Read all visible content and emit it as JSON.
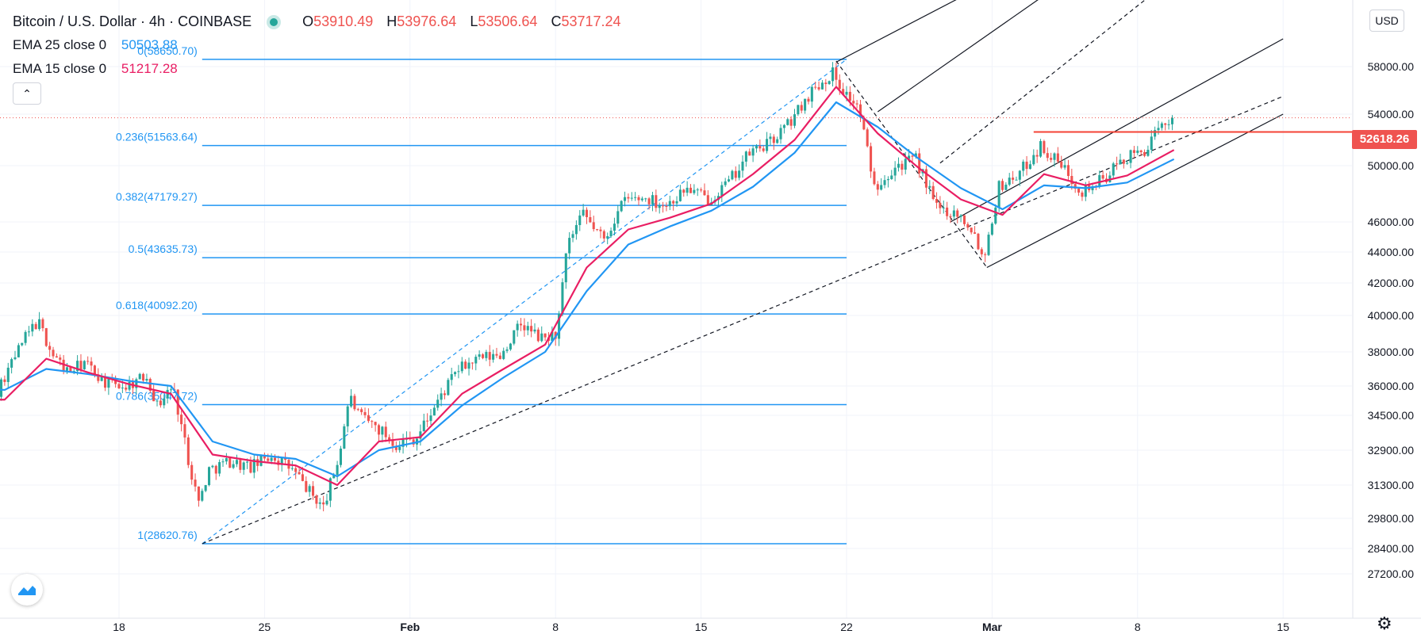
{
  "header": {
    "title": "Bitcoin / U.S. Dollar · 4h · COINBASE",
    "ohlc": [
      {
        "key": "O",
        "value": "53910.49"
      },
      {
        "key": "H",
        "value": "53976.64"
      },
      {
        "key": "L",
        "value": "53506.64"
      },
      {
        "key": "C",
        "value": "53717.24"
      }
    ]
  },
  "indicators": [
    {
      "label": "EMA 25 close 0",
      "value": "50503.88",
      "color": "#2196f3"
    },
    {
      "label": "EMA 15 close 0",
      "value": "51217.28",
      "color": "#e91e63"
    }
  ],
  "currency": "USD",
  "price_tag": {
    "value": "52618.26",
    "color": "#ef5350"
  },
  "colors": {
    "up": "#26a69a",
    "down": "#ef5350",
    "fib": "#2196f3",
    "ema25": "#2196f3",
    "ema15": "#e91e63",
    "resistance": "#f44336"
  },
  "icons": {
    "collapse": "chevron-up-icon",
    "logo": "tradingview-logo-icon",
    "settings": "gear-icon"
  },
  "chart_data": {
    "type": "candlestick",
    "symbol": "BTCUSD",
    "interval": "4h",
    "exchange": "COINBASE",
    "y_ticks": [
      "27200.00",
      "28400.00",
      "29800.00",
      "31300.00",
      "32900.00",
      "34500.00",
      "36000.00",
      "38000.00",
      "40000.00",
      "42000.00",
      "44000.00",
      "46000.00",
      "50000.00",
      "54000.00",
      "58000.00"
    ],
    "x_ticks": [
      {
        "label": "18",
        "date": "2021-01-18"
      },
      {
        "label": "25",
        "date": "2021-01-25"
      },
      {
        "label": "Feb",
        "date": "2021-02-01"
      },
      {
        "label": "8",
        "date": "2021-02-08"
      },
      {
        "label": "15",
        "date": "2021-02-15"
      },
      {
        "label": "22",
        "date": "2021-02-22"
      },
      {
        "label": "Mar",
        "date": "2021-03-01"
      },
      {
        "label": "8",
        "date": "2021-03-08"
      },
      {
        "label": "15",
        "date": "2021-03-15"
      }
    ],
    "x_range": [
      "2021-01-10T12:00",
      "2021-03-15T12:00"
    ],
    "fibonacci": {
      "from": "2021-01-22T00:00",
      "to": "2021-02-22T00:00",
      "levels": [
        {
          "label": "0(58650.70)",
          "price": 58650.7
        },
        {
          "label": "0.236(51563.64)",
          "price": 51563.64
        },
        {
          "label": "0.382(47179.27)",
          "price": 47179.27
        },
        {
          "label": "0.5(43635.73)",
          "price": 43635.73
        },
        {
          "label": "0.618(40092.20)",
          "price": 40092.2
        },
        {
          "label": "0.786(35047.72)",
          "price": 35047.72
        },
        {
          "label": "1(28620.76)",
          "price": 28620.76
        }
      ]
    },
    "resistance": {
      "price": 52618.26,
      "from": "2021-03-03T00:00"
    },
    "last_price": 53717.24,
    "ema25_last": 50503.88,
    "ema15_last": 51217.28,
    "price_path": [
      [
        "2021-01-10T12:00",
        35000
      ],
      [
        "2021-01-11T12:00",
        33500
      ],
      [
        "2021-01-12T12:00",
        36200
      ],
      [
        "2021-01-13T12:00",
        38500
      ],
      [
        "2021-01-14T06:00",
        39700
      ],
      [
        "2021-01-15T00:00",
        37800
      ],
      [
        "2021-01-15T18:00",
        36800
      ],
      [
        "2021-01-16T12:00",
        37400
      ],
      [
        "2021-01-17T12:00",
        36200
      ],
      [
        "2021-01-18T12:00",
        36000
      ],
      [
        "2021-01-19T12:00",
        36600
      ],
      [
        "2021-01-20T00:00",
        35000
      ],
      [
        "2021-01-20T18:00",
        36000
      ],
      [
        "2021-01-21T12:00",
        32500
      ],
      [
        "2021-01-22T00:00",
        30500
      ],
      [
        "2021-01-22T12:00",
        32000
      ],
      [
        "2021-01-23T12:00",
        32400
      ],
      [
        "2021-01-24T12:00",
        32100
      ],
      [
        "2021-01-25T12:00",
        32700
      ],
      [
        "2021-01-26T12:00",
        32000
      ],
      [
        "2021-01-27T12:00",
        30800
      ],
      [
        "2021-01-28T00:00",
        30300
      ],
      [
        "2021-01-28T18:00",
        32600
      ],
      [
        "2021-01-29T06:00",
        35500
      ],
      [
        "2021-01-29T18:00",
        34400
      ],
      [
        "2021-01-30T12:00",
        34000
      ],
      [
        "2021-01-31T12:00",
        33200
      ],
      [
        "2021-02-01T12:00",
        33500
      ],
      [
        "2021-02-02T12:00",
        35200
      ],
      [
        "2021-02-03T12:00",
        37000
      ],
      [
        "2021-02-04T12:00",
        37600
      ],
      [
        "2021-02-05T12:00",
        37800
      ],
      [
        "2021-02-06T12:00",
        39500
      ],
      [
        "2021-02-07T12:00",
        38700
      ],
      [
        "2021-02-08T06:00",
        39000
      ],
      [
        "2021-02-08T18:00",
        44500
      ],
      [
        "2021-02-09T12:00",
        46500
      ],
      [
        "2021-02-10T12:00",
        44800
      ],
      [
        "2021-02-11T12:00",
        47600
      ],
      [
        "2021-02-12T12:00",
        47700
      ],
      [
        "2021-02-13T12:00",
        47200
      ],
      [
        "2021-02-14T12:00",
        48400
      ],
      [
        "2021-02-15T12:00",
        47600
      ],
      [
        "2021-02-16T12:00",
        48800
      ],
      [
        "2021-02-17T12:00",
        51000
      ],
      [
        "2021-02-18T12:00",
        51800
      ],
      [
        "2021-02-19T12:00",
        53500
      ],
      [
        "2021-02-20T12:00",
        56000
      ],
      [
        "2021-02-21T12:00",
        57500
      ],
      [
        "2021-02-22T00:00",
        56000
      ],
      [
        "2021-02-22T18:00",
        54500
      ],
      [
        "2021-02-23T12:00",
        48500
      ],
      [
        "2021-02-24T12:00",
        50000
      ],
      [
        "2021-02-25T12:00",
        50500
      ],
      [
        "2021-02-26T12:00",
        47000
      ],
      [
        "2021-02-27T12:00",
        46600
      ],
      [
        "2021-02-28T06:00",
        45500
      ],
      [
        "2021-02-28T18:00",
        43500
      ],
      [
        "2021-03-01T12:00",
        48500
      ],
      [
        "2021-03-02T12:00",
        49500
      ],
      [
        "2021-03-03T12:00",
        51500
      ],
      [
        "2021-03-04T12:00",
        50000
      ],
      [
        "2021-03-05T12:00",
        48200
      ],
      [
        "2021-03-06T12:00",
        49000
      ],
      [
        "2021-03-07T12:00",
        50500
      ],
      [
        "2021-03-08T12:00",
        51200
      ],
      [
        "2021-03-09T06:00",
        52800
      ],
      [
        "2021-03-09T18:00",
        53717
      ]
    ],
    "ema25_path": [
      [
        "2021-01-10T12:00",
        35900
      ],
      [
        "2021-01-12T12:00",
        35800
      ],
      [
        "2021-01-14T12:00",
        37000
      ],
      [
        "2021-01-16T12:00",
        36700
      ],
      [
        "2021-01-18T12:00",
        36300
      ],
      [
        "2021-01-20T12:00",
        36000
      ],
      [
        "2021-01-22T12:00",
        33300
      ],
      [
        "2021-01-24T12:00",
        32700
      ],
      [
        "2021-01-26T12:00",
        32500
      ],
      [
        "2021-01-28T12:00",
        31700
      ],
      [
        "2021-01-30T12:00",
        32900
      ],
      [
        "2021-02-01T12:00",
        33300
      ],
      [
        "2021-02-03T12:00",
        35000
      ],
      [
        "2021-02-05T12:00",
        36500
      ],
      [
        "2021-02-07T12:00",
        38000
      ],
      [
        "2021-02-09T12:00",
        41500
      ],
      [
        "2021-02-11T12:00",
        44500
      ],
      [
        "2021-02-13T12:00",
        45700
      ],
      [
        "2021-02-15T12:00",
        46800
      ],
      [
        "2021-02-17T12:00",
        48500
      ],
      [
        "2021-02-19T12:00",
        51000
      ],
      [
        "2021-02-21T12:00",
        55000
      ],
      [
        "2021-02-23T12:00",
        53000
      ],
      [
        "2021-02-25T12:00",
        50500
      ],
      [
        "2021-02-27T12:00",
        48400
      ],
      [
        "2021-03-01T12:00",
        46900
      ],
      [
        "2021-03-03T12:00",
        48600
      ],
      [
        "2021-03-05T12:00",
        48400
      ],
      [
        "2021-03-07T12:00",
        48800
      ],
      [
        "2021-03-09T18:00",
        50503.88
      ]
    ],
    "ema15_path": [
      [
        "2021-01-10T12:00",
        35300
      ],
      [
        "2021-01-12T12:00",
        35300
      ],
      [
        "2021-01-14T12:00",
        37600
      ],
      [
        "2021-01-16T12:00",
        36800
      ],
      [
        "2021-01-18T12:00",
        36100
      ],
      [
        "2021-01-20T12:00",
        35600
      ],
      [
        "2021-01-22T12:00",
        32700
      ],
      [
        "2021-01-24T12:00",
        32400
      ],
      [
        "2021-01-26T12:00",
        32200
      ],
      [
        "2021-01-28T12:00",
        31300
      ],
      [
        "2021-01-30T12:00",
        33300
      ],
      [
        "2021-02-01T12:00",
        33500
      ],
      [
        "2021-02-03T12:00",
        35600
      ],
      [
        "2021-02-05T12:00",
        37000
      ],
      [
        "2021-02-07T12:00",
        38400
      ],
      [
        "2021-02-09T12:00",
        43000
      ],
      [
        "2021-02-11T12:00",
        45500
      ],
      [
        "2021-02-13T12:00",
        46300
      ],
      [
        "2021-02-15T12:00",
        47300
      ],
      [
        "2021-02-17T12:00",
        49400
      ],
      [
        "2021-02-19T12:00",
        52000
      ],
      [
        "2021-02-21T12:00",
        56300
      ],
      [
        "2021-02-23T12:00",
        52500
      ],
      [
        "2021-02-25T12:00",
        49800
      ],
      [
        "2021-02-27T12:00",
        47600
      ],
      [
        "2021-03-01T12:00",
        46500
      ],
      [
        "2021-03-03T12:00",
        49400
      ],
      [
        "2021-03-05T12:00",
        48600
      ],
      [
        "2021-03-07T12:00",
        49300
      ],
      [
        "2021-03-09T18:00",
        51217.28
      ]
    ],
    "trend_lines": [
      {
        "style": "dashed",
        "color": "#2196f3",
        "from": [
          "2021-01-22T00:00",
          28620.76
        ],
        "to": [
          "2021-02-22T00:00",
          58650.7
        ]
      },
      {
        "style": "dashed",
        "color": "#131722",
        "from": [
          "2021-01-22T00:00",
          28620.76
        ],
        "to": [
          "2021-03-15T00:00",
          55500
        ]
      },
      {
        "style": "dashed",
        "color": "#131722",
        "from": [
          "2021-02-21T12:00",
          58500
        ],
        "to": [
          "2021-02-28T18:00",
          43000
        ]
      },
      {
        "style": "solid",
        "color": "#131722",
        "from": [
          "2021-02-28T18:00",
          43000
        ],
        "to": [
          "2021-03-15T00:00",
          54000
        ]
      },
      {
        "style": "solid",
        "color": "#131722",
        "from": [
          "2021-02-27T00:00",
          46000
        ],
        "to": [
          "2021-03-15T00:00",
          60500
        ]
      },
      {
        "style": "solid",
        "color": "#131722",
        "from": [
          "2021-02-21T12:00",
          58400
        ],
        "to": [
          "2021-03-01T00:00",
          66000
        ]
      },
      {
        "style": "solid",
        "color": "#131722",
        "from": [
          "2021-02-23T12:00",
          54200
        ],
        "to": [
          "2021-03-04T12:00",
          66000
        ]
      },
      {
        "style": "dashed",
        "color": "#131722",
        "from": [
          "2021-02-26T12:00",
          50200
        ],
        "to": [
          "2021-03-09T12:00",
          66000
        ]
      }
    ]
  }
}
